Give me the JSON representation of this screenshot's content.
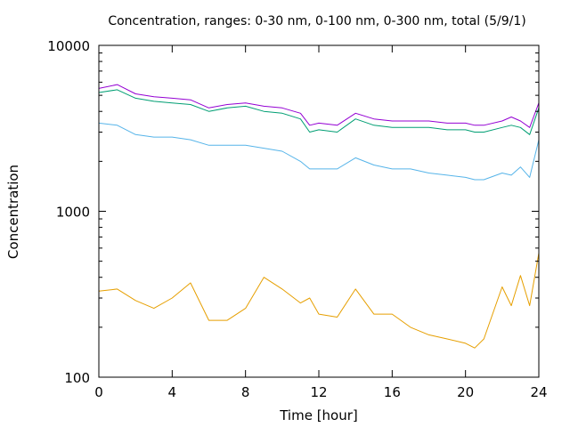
{
  "chart_data": {
    "type": "line",
    "title": "Concentration, ranges: 0-30 nm, 0-100 nm, 0-300 nm, total (5/9/1)",
    "xlabel": "Time [hour]",
    "ylabel": "Concentration",
    "xlim": [
      0,
      24
    ],
    "ylim": [
      100,
      10000
    ],
    "yscale": "log",
    "grid": false,
    "xticks": [
      0,
      4,
      8,
      12,
      16,
      20,
      24
    ],
    "yticks": [
      100,
      1000,
      10000
    ],
    "x": [
      0,
      1,
      2,
      3,
      4,
      5,
      6,
      7,
      8,
      9,
      10,
      11,
      11.5,
      12,
      13,
      14,
      15,
      16,
      17,
      18,
      19,
      20,
      20.5,
      21,
      22,
      22.5,
      23,
      23.5,
      24
    ],
    "series": [
      {
        "color": "#e69f00",
        "values": [
          330,
          340,
          290,
          260,
          300,
          370,
          220,
          220,
          260,
          400,
          340,
          280,
          300,
          240,
          230,
          340,
          240,
          240,
          200,
          180,
          170,
          160,
          150,
          170,
          350,
          270,
          410,
          270,
          560
        ]
      },
      {
        "color": "#56b4e9",
        "values": [
          3400,
          3300,
          2900,
          2800,
          2800,
          2700,
          2500,
          2500,
          2500,
          2400,
          2300,
          2000,
          1800,
          1800,
          1800,
          2100,
          1900,
          1800,
          1800,
          1700,
          1650,
          1600,
          1550,
          1550,
          1700,
          1650,
          1850,
          1600,
          2700
        ]
      },
      {
        "color": "#009e73",
        "values": [
          5200,
          5400,
          4800,
          4600,
          4500,
          4400,
          4000,
          4200,
          4300,
          4000,
          3900,
          3600,
          3000,
          3100,
          3000,
          3600,
          3300,
          3200,
          3200,
          3200,
          3100,
          3100,
          3000,
          3000,
          3200,
          3300,
          3200,
          2900,
          4200
        ]
      },
      {
        "color": "#9400d3",
        "values": [
          5500,
          5800,
          5100,
          4900,
          4800,
          4700,
          4200,
          4400,
          4500,
          4300,
          4200,
          3900,
          3300,
          3400,
          3300,
          3900,
          3600,
          3500,
          3500,
          3500,
          3400,
          3400,
          3300,
          3300,
          3500,
          3700,
          3500,
          3200,
          4500
        ]
      }
    ]
  }
}
